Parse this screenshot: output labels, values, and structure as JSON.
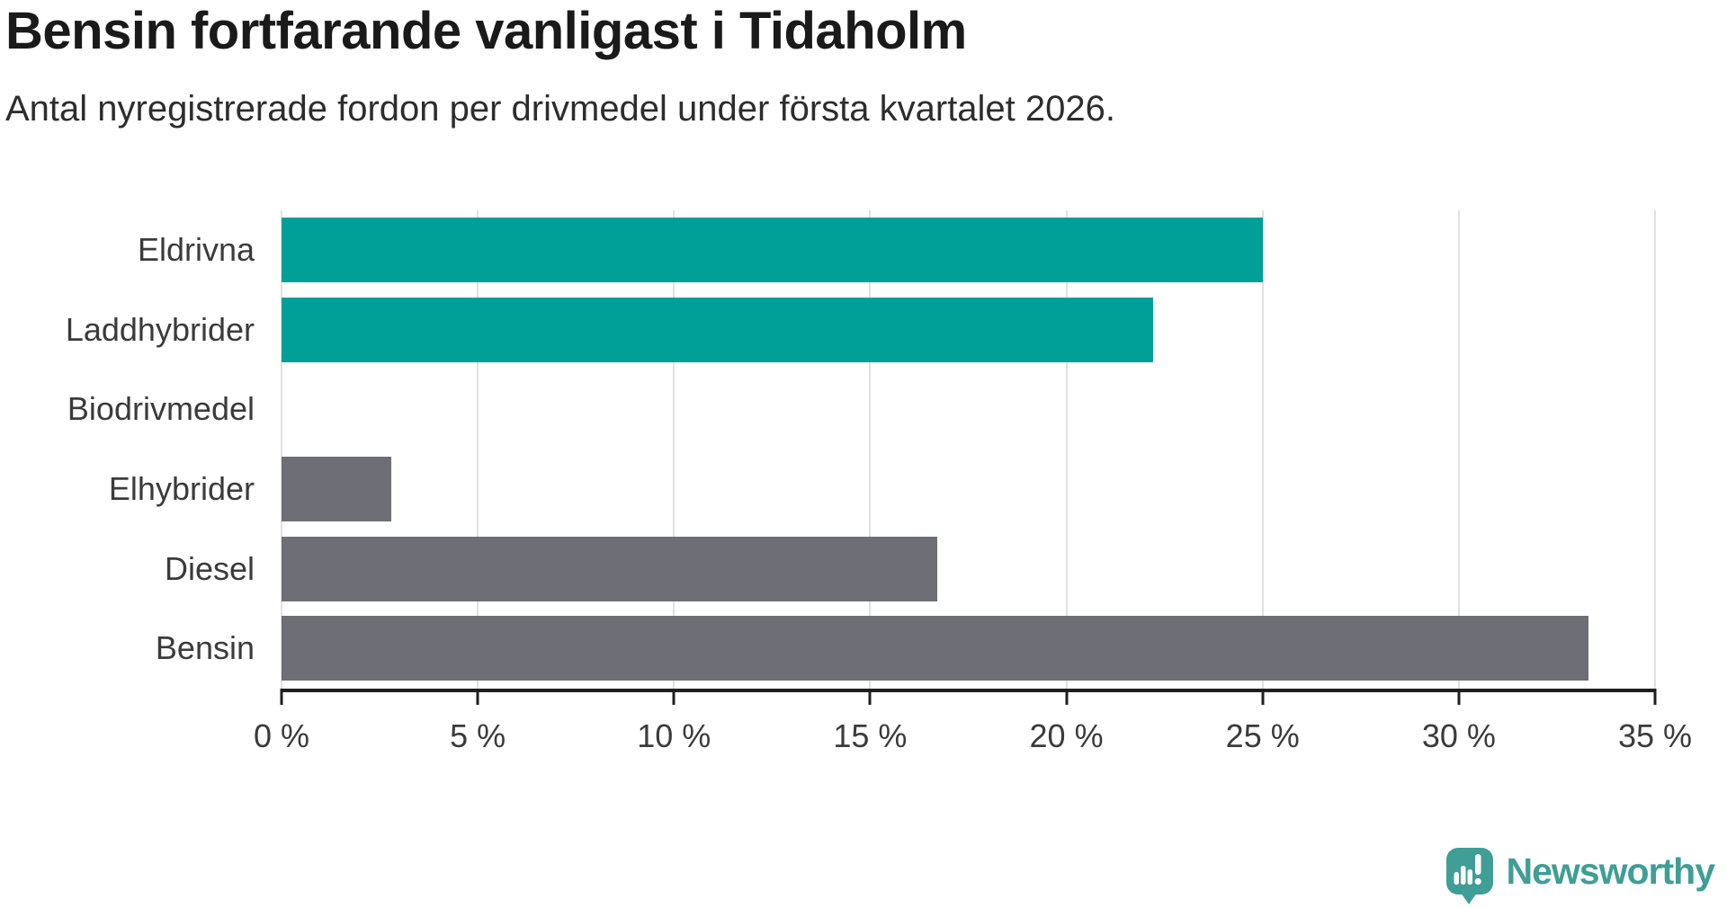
{
  "header": {
    "title": "Bensin fortfarande vanligast i Tidaholm",
    "subtitle": "Antal nyregistrerade fordon per drivmedel under första kvartalet 2026."
  },
  "chart_data": {
    "type": "bar",
    "orientation": "horizontal",
    "title": "Bensin fortfarande vanligast i Tidaholm",
    "subtitle": "Antal nyregistrerade fordon per drivmedel under första kvartalet 2026.",
    "categories": [
      "Eldrivna",
      "Laddhybrider",
      "Biodrivmedel",
      "Elhybrider",
      "Diesel",
      "Bensin"
    ],
    "values": [
      25.0,
      22.2,
      0,
      2.8,
      16.7,
      33.3
    ],
    "unit": "%",
    "bar_colors": [
      "#00a098",
      "#00a098",
      "#00a098",
      "#6d6e76",
      "#6d6e76",
      "#6d6e76"
    ],
    "xlim": [
      0,
      35
    ],
    "xticks": [
      0,
      5,
      10,
      15,
      20,
      25,
      30,
      35
    ],
    "xtick_labels": [
      "0 %",
      "5 %",
      "10 %",
      "15 %",
      "20 %",
      "25 %",
      "30 %",
      "35 %"
    ],
    "grid": "vertical",
    "legend": false,
    "accent_color": "#00a098",
    "neutral_color": "#6d6e76"
  },
  "branding": {
    "name": "Newsworthy",
    "logo_color": "#3f9e96",
    "logo_icon": "newsworthy-speech-bubble-chart-icon"
  }
}
